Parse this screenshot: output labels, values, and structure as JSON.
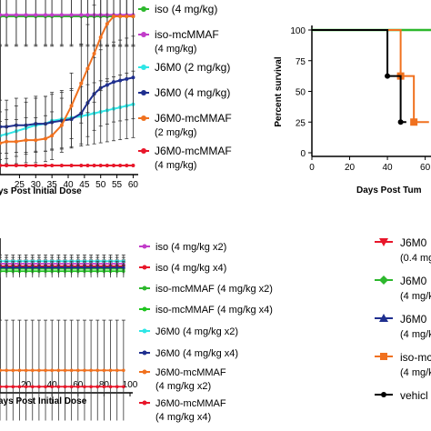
{
  "chart_data": [
    {
      "type": "line",
      "xlabel": "ys Post Initial Dose",
      "x_ticks": [
        25,
        30,
        35,
        40,
        45,
        50,
        55,
        60
      ],
      "xlim": [
        19,
        61
      ],
      "ylim": [
        0,
        100
      ],
      "grid": false,
      "legend_position": "right",
      "x": [
        19,
        21,
        24,
        27,
        30,
        33,
        35,
        38,
        41,
        44,
        46,
        48,
        50,
        52,
        54,
        56,
        58,
        60
      ],
      "series": [
        {
          "name": "iso (4 mg/kg)",
          "color": "#2db82d",
          "values": [
            100,
            100,
            100,
            100,
            100,
            100,
            100,
            100,
            100,
            100,
            100,
            100,
            100,
            100,
            100,
            100,
            100,
            100
          ]
        },
        {
          "name": "iso-mcMMAF (4 mg/kg)",
          "color": "#c13cc9",
          "values": [
            101,
            101,
            101,
            101,
            101,
            101,
            101,
            101,
            101,
            101,
            101,
            101,
            101,
            101,
            101,
            101,
            101,
            101
          ]
        },
        {
          "name": "J6M0 (2 mg/kg)",
          "color": "#2ee6e6",
          "values": [
            20,
            21,
            23,
            25,
            27,
            28,
            30,
            31,
            32,
            33,
            34,
            35,
            36,
            37,
            38,
            39,
            40,
            41
          ]
        },
        {
          "name": "J6M0 (4 mg/kg)",
          "color": "#1f2f8f",
          "values": [
            26,
            26,
            27,
            27,
            28,
            28,
            29,
            30,
            31,
            35,
            42,
            48,
            52,
            54,
            56,
            57,
            58,
            59
          ]
        },
        {
          "name": "J6M0-mcMMAF (2 mg/kg)",
          "color": "#f0711f",
          "values": [
            15,
            16,
            16,
            17,
            17,
            18,
            20,
            27,
            40,
            55,
            65,
            75,
            86,
            95,
            100,
            100,
            100,
            100
          ]
        },
        {
          "name": "J6M0-mcMMAF (4 mg/kg)",
          "color": "#e8162a",
          "values": [
            0,
            0,
            0,
            0,
            0,
            0,
            0,
            0,
            0,
            0,
            0,
            0,
            0,
            0,
            0,
            0,
            0,
            0
          ]
        }
      ]
    },
    {
      "type": "line",
      "xlabel": "Days Post Tum",
      "ylabel": "Percent survival",
      "y_ticks": [
        0,
        25,
        50,
        75,
        100
      ],
      "x_ticks": [
        0,
        20,
        40,
        60
      ],
      "xlim": [
        0,
        65
      ],
      "ylim": [
        0,
        100
      ],
      "grid": false,
      "series": [
        {
          "name": "",
          "color": "#2db82d",
          "points": [
            [
              0,
              100
            ],
            [
              65,
              100
            ]
          ]
        },
        {
          "name": "",
          "color": "#f0711f",
          "points": [
            [
              0,
              100
            ],
            [
              47,
              100
            ],
            [
              47,
              62.5
            ],
            [
              54,
              62.5
            ],
            [
              54,
              25
            ],
            [
              62,
              25
            ]
          ]
        },
        {
          "name": "",
          "color": "#000000",
          "points": [
            [
              0,
              100
            ],
            [
              40,
              100
            ],
            [
              40,
              62.5
            ],
            [
              47,
              62.5
            ],
            [
              47,
              25
            ],
            [
              50,
              25
            ]
          ]
        }
      ]
    },
    {
      "type": "line",
      "xlabel": "ays Post Initial Dose",
      "x_ticks": [
        20,
        40,
        60,
        80,
        100
      ],
      "xlim": [
        0,
        100
      ],
      "ylim": [
        0,
        100
      ],
      "grid": false,
      "legend_position": "right",
      "x": [
        0,
        5,
        10,
        15,
        20,
        25,
        30,
        35,
        40,
        45,
        50,
        55,
        60,
        65,
        70,
        75,
        80,
        85,
        90,
        95
      ],
      "series": [
        {
          "name": "iso (4 mg/kg x2)",
          "color": "#c13cc9",
          "value": 100
        },
        {
          "name": "iso (4 mg/kg x4)",
          "color": "#e8162a",
          "value": 98
        },
        {
          "name": "iso-mcMMAF (4 mg/kg x2)",
          "color": "#2db82d",
          "value": 96
        },
        {
          "name": "iso-mcMMAF (4 mg/kg x4)",
          "color": "#1ec41e",
          "value": 94
        },
        {
          "name": "J6M0 (4 mg/kg x2)",
          "color": "#2ee6e6",
          "value": 102
        },
        {
          "name": "J6M0 (4 mg/kg x4)",
          "color": "#1f2f8f",
          "value": 97
        },
        {
          "name": "J6M0-mcMMAF (4 mg/kg x2)",
          "color": "#f0711f",
          "value": 15
        },
        {
          "name": "J6M0-mcMMAF (4 mg/kg x4)",
          "color": "#e8162a",
          "value": 2
        }
      ]
    }
  ],
  "legend_top": [
    {
      "lines": [
        "iso (4 mg/kg)"
      ],
      "color": "#2db82d",
      "marker": "dot"
    },
    {
      "lines": [
        "iso-mcMMAF",
        "(4 mg/kg)"
      ],
      "color": "#c13cc9",
      "marker": "dot"
    },
    {
      "lines": [
        "J6M0 (2 mg/kg)"
      ],
      "color": "#2ee6e6",
      "marker": "dot"
    },
    {
      "lines": [
        "J6M0 (4 mg/kg)"
      ],
      "color": "#1f2f8f",
      "marker": "dot"
    },
    {
      "lines": [
        "J6M0-mcMMAF",
        "(2 mg/kg)"
      ],
      "color": "#f0711f",
      "marker": "dot"
    },
    {
      "lines": [
        "J6M0-mcMMAF",
        "(4 mg/kg)"
      ],
      "color": "#e8162a",
      "marker": "dot"
    }
  ],
  "legend_bottom": [
    {
      "lines": [
        "iso (4 mg/kg x2)"
      ],
      "color": "#c13cc9"
    },
    {
      "lines": [
        "iso (4 mg/kg x4)"
      ],
      "color": "#e8162a"
    },
    {
      "lines": [
        "iso-mcMMAF (4 mg/kg x2)"
      ],
      "color": "#2db82d"
    },
    {
      "lines": [
        "iso-mcMMAF (4 mg/kg x4)"
      ],
      "color": "#1ec41e"
    },
    {
      "lines": [
        "J6M0 (4 mg/kg x2)"
      ],
      "color": "#2ee6e6"
    },
    {
      "lines": [
        "J6M0 (4 mg/kg x4)"
      ],
      "color": "#1f2f8f"
    },
    {
      "lines": [
        "J6M0-mcMMAF",
        "(4 mg/kg x2)"
      ],
      "color": "#f0711f"
    },
    {
      "lines": [
        "J6M0-mcMMAF",
        "(4 mg/kg x4)"
      ],
      "color": "#e8162a"
    }
  ],
  "legend_survival": [
    {
      "lines": [
        "J6M0",
        "(0.4 mg"
      ],
      "color": "#e8162a",
      "marker": "tri-down"
    },
    {
      "lines": [
        "J6M0",
        "(4 mg/k"
      ],
      "color": "#2db82d",
      "marker": "diamond"
    },
    {
      "lines": [
        "J6M0",
        "(4 mg/k"
      ],
      "color": "#1f2f8f",
      "marker": "tri-up"
    },
    {
      "lines": [
        "iso-mc",
        "(4 mg/k"
      ],
      "color": "#f0711f",
      "marker": "square"
    },
    {
      "lines": [
        "vehicl"
      ],
      "color": "#000000",
      "marker": "dot"
    }
  ]
}
